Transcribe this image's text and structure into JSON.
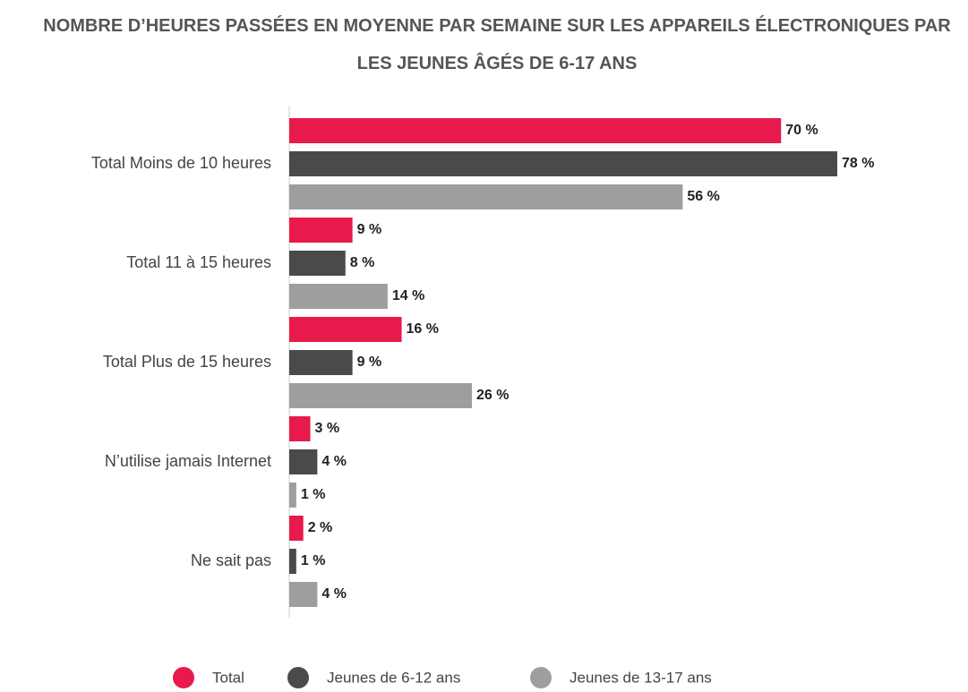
{
  "chart_data": {
    "type": "bar",
    "orientation": "horizontal",
    "title": "NOMBRE D’HEURES PASSÉES EN MOYENNE PAR SEMAINE SUR LES APPAREILS ÉLECTRONIQUES PAR LES JEUNES ÂGÉS DE 6-17 ANS",
    "categories": [
      "Total Moins de 10 heures",
      "Total 11 à 15 heures",
      "Total Plus de 15 heures",
      "N’utilise jamais Internet",
      "Ne sait pas"
    ],
    "series": [
      {
        "name": "Total",
        "color": "#e8194b",
        "values": [
          70,
          9,
          16,
          3,
          2
        ],
        "value_labels": [
          "70 %",
          "9 %",
          "16 %",
          "3 %",
          "2 %"
        ]
      },
      {
        "name": "Jeunes de 6-12 ans",
        "color": "#4a4a4a",
        "values": [
          78,
          8,
          9,
          4,
          1
        ],
        "value_labels": [
          "78 %",
          "8 %",
          "9 %",
          "4 %",
          "1 %"
        ]
      },
      {
        "name": "Jeunes de 13-17 ans",
        "color": "#9e9e9e",
        "values": [
          56,
          14,
          26,
          1,
          4
        ],
        "value_labels": [
          "56 %",
          "14 %",
          "26 %",
          "1 %",
          "4 %"
        ]
      }
    ],
    "legend": "bottom"
  }
}
